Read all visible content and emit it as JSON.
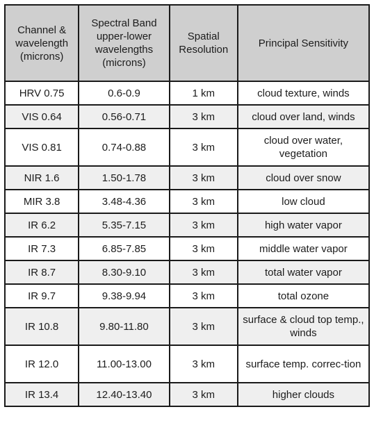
{
  "table": {
    "headers": [
      "Channel & wavelength (microns)",
      "Spectral Band upper-lower wavelengths (microns)",
      "Spatial Resolution",
      "Principal Sensitivity"
    ],
    "rows": [
      {
        "channel": "HRV 0.75",
        "band": "0.6-0.9",
        "resolution": "1 km",
        "sensitivity": "cloud texture, winds"
      },
      {
        "channel": "VIS 0.64",
        "band": "0.56-0.71",
        "resolution": "3 km",
        "sensitivity": "cloud over land, winds"
      },
      {
        "channel": "VIS 0.81",
        "band": "0.74-0.88",
        "resolution": "3 km",
        "sensitivity": "cloud over water, vegetation"
      },
      {
        "channel": "NIR 1.6",
        "band": "1.50-1.78",
        "resolution": "3 km",
        "sensitivity": "cloud over snow"
      },
      {
        "channel": "MIR 3.8",
        "band": "3.48-4.36",
        "resolution": "3 km",
        "sensitivity": "low cloud"
      },
      {
        "channel": "IR 6.2",
        "band": "5.35-7.15",
        "resolution": "3 km",
        "sensitivity": "high water vapor"
      },
      {
        "channel": "IR 7.3",
        "band": "6.85-7.85",
        "resolution": "3 km",
        "sensitivity": "middle water vapor"
      },
      {
        "channel": "IR 8.7",
        "band": "8.30-9.10",
        "resolution": "3 km",
        "sensitivity": "total water vapor"
      },
      {
        "channel": "IR 9.7",
        "band": "9.38-9.94",
        "resolution": "3 km",
        "sensitivity": "total ozone"
      },
      {
        "channel": "IR 10.8",
        "band": "9.80-11.80",
        "resolution": "3 km",
        "sensitivity": "surface & cloud top temp., winds"
      },
      {
        "channel": "IR 12.0",
        "band": "11.00-13.00",
        "resolution": "3 km",
        "sensitivity": "surface temp. correc-tion"
      },
      {
        "channel": "IR 13.4",
        "band": "12.40-13.40",
        "resolution": "3 km",
        "sensitivity": "higher clouds"
      }
    ]
  }
}
